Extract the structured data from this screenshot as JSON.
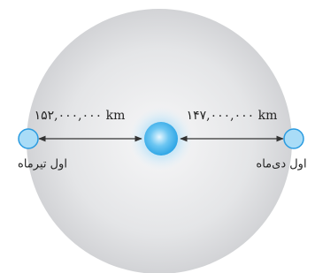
{
  "distances": [
    {
      "label": "۱۵۲,۰۰۰,۰۰۰ km"
    },
    {
      "label": "۱۴۷,۰۰۰,۰۰۰ km"
    }
  ],
  "points": [
    {
      "label": "اول تیرماه"
    },
    {
      "label": "اول دی‌ماه"
    }
  ]
}
